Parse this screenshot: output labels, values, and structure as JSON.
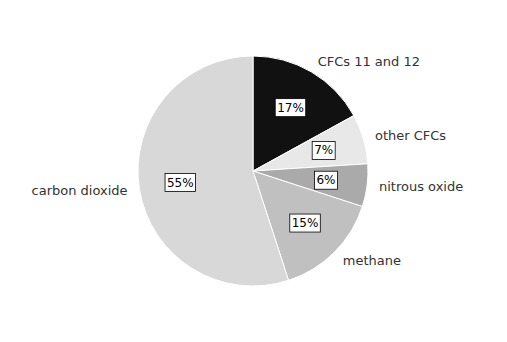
{
  "chart_data": {
    "type": "pie",
    "categories": [
      "CFCs 11 and 12",
      "other CFCs",
      "nitrous oxide",
      "methane",
      "carbon dioxide"
    ],
    "values": [
      17,
      7,
      6,
      15,
      55
    ],
    "value_labels": [
      "17%",
      "7%",
      "6%",
      "15%",
      "55%"
    ],
    "data_labels": true,
    "colors": [
      "#111111",
      "#e8e8e8",
      "#aaaaaa",
      "#c0c0c0",
      "#d8d8d8"
    ]
  }
}
